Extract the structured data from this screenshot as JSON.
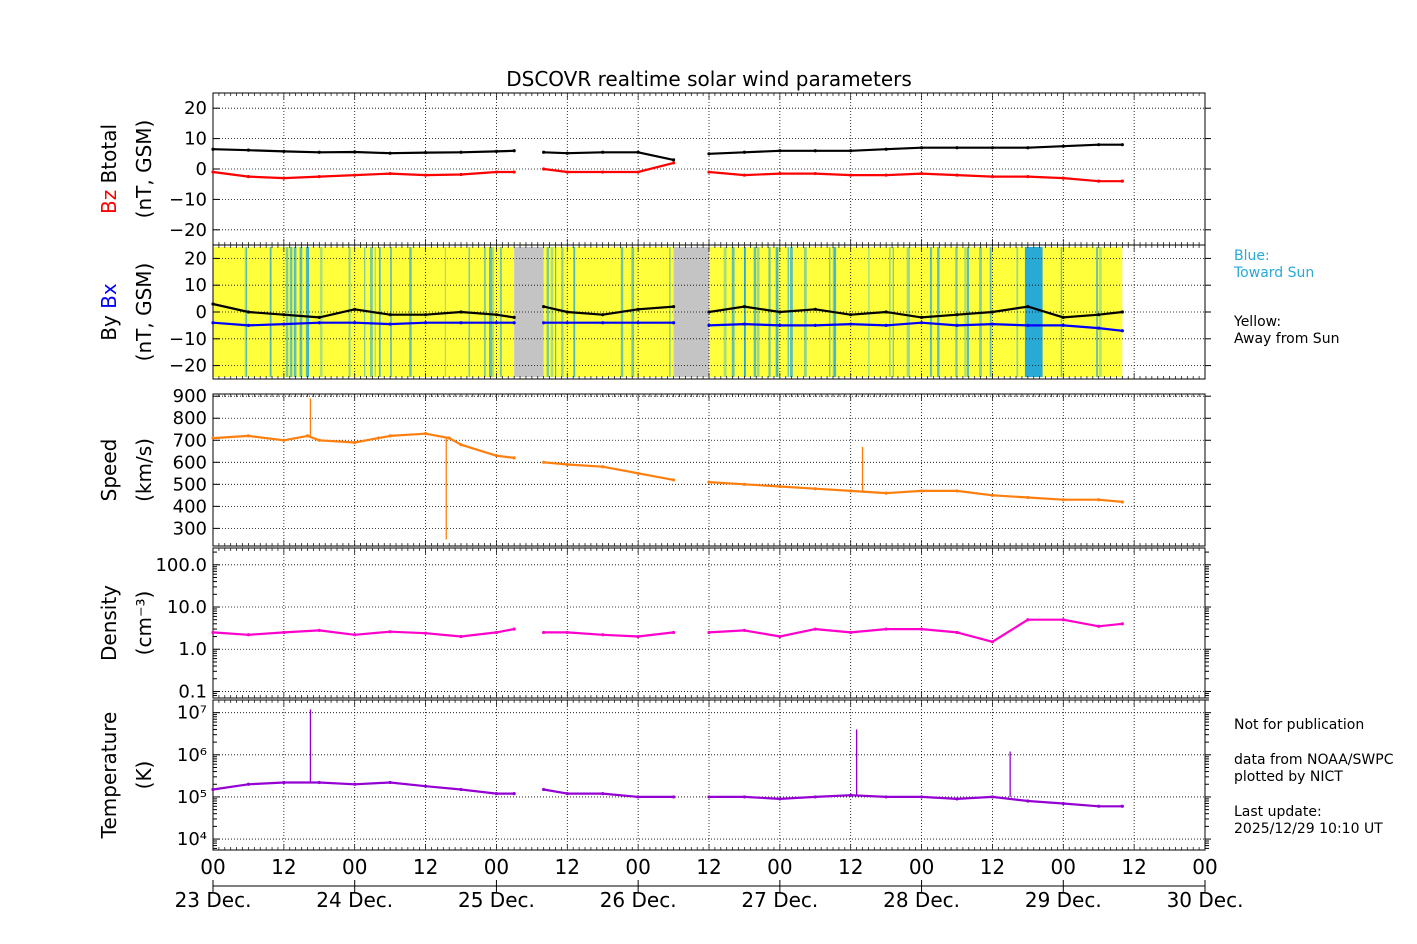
{
  "title": "DSCOVR realtime solar wind parameters",
  "colors": {
    "btotal": "#000000",
    "bz": "#ff0000",
    "by": "#000000",
    "bx": "#0000ff",
    "speed": "#ff7f0e",
    "density": "#ff00cc",
    "temperature": "#9400d3",
    "toward": "#29a9d6",
    "away": "#ffff3c",
    "gap": "#c4c4c4"
  },
  "legend_notes": {
    "blue_label": "Blue:",
    "blue_text": "Toward Sun",
    "yellow_label": "Yellow:",
    "yellow_text": "Away from Sun"
  },
  "footer_notes": {
    "not_for_pub": "Not for publication",
    "source": "data from NOAA/SWPC",
    "plotted": "plotted by NICT",
    "last_update_label": "Last update:",
    "last_update": "2025/12/29 10:10 UT"
  },
  "chart_data": [
    {
      "type": "line",
      "name": "magnetic-field-total",
      "ylabel_lines": [
        [
          "Bz",
          "Btotal"
        ],
        [
          "(nT, GSM)"
        ]
      ],
      "ylim": [
        -25,
        25
      ],
      "yticks": [
        -20,
        -10,
        0,
        10,
        20
      ],
      "ytick_labels": [
        "−20",
        "−10",
        "0",
        "10",
        "20"
      ],
      "series": [
        {
          "name": "Btotal",
          "color_key": "btotal",
          "points": [
            [
              0,
              6.5
            ],
            [
              6,
              6.2
            ],
            [
              12,
              5.8
            ],
            [
              18,
              5.5
            ],
            [
              24,
              5.6
            ],
            [
              30,
              5.2
            ],
            [
              36,
              5.4
            ],
            [
              42,
              5.5
            ],
            [
              48,
              5.8
            ],
            [
              51,
              6
            ],
            [
              56,
              5.5
            ],
            [
              60,
              5.2
            ],
            [
              66,
              5.5
            ],
            [
              72,
              5.5
            ],
            [
              78,
              3
            ],
            [
              84,
              5
            ],
            [
              90,
              5.5
            ],
            [
              96,
              6
            ],
            [
              102,
              6
            ],
            [
              108,
              6
            ],
            [
              114,
              6.5
            ],
            [
              120,
              7
            ],
            [
              126,
              7
            ],
            [
              132,
              7
            ],
            [
              138,
              7
            ],
            [
              144,
              7.5
            ],
            [
              150,
              8
            ],
            [
              154,
              8
            ]
          ]
        },
        {
          "name": "Bz",
          "color_key": "bz",
          "points": [
            [
              0,
              -1
            ],
            [
              6,
              -2.5
            ],
            [
              12,
              -3
            ],
            [
              18,
              -2.5
            ],
            [
              24,
              -2
            ],
            [
              30,
              -1.5
            ],
            [
              36,
              -2
            ],
            [
              42,
              -1.8
            ],
            [
              48,
              -1
            ],
            [
              51,
              -1
            ],
            [
              56,
              0
            ],
            [
              60,
              -1
            ],
            [
              66,
              -1
            ],
            [
              72,
              -1
            ],
            [
              78,
              2
            ],
            [
              84,
              -1
            ],
            [
              90,
              -2
            ],
            [
              96,
              -1.5
            ],
            [
              102,
              -1.5
            ],
            [
              108,
              -2
            ],
            [
              114,
              -2
            ],
            [
              120,
              -1.5
            ],
            [
              126,
              -2
            ],
            [
              132,
              -2.5
            ],
            [
              138,
              -2.5
            ],
            [
              144,
              -3
            ],
            [
              150,
              -4
            ],
            [
              154,
              -4
            ]
          ]
        }
      ]
    },
    {
      "type": "line",
      "name": "magnetic-field-components",
      "ylabel_lines": [
        [
          "By",
          "Bx"
        ],
        [
          "(nT, GSM)"
        ]
      ],
      "ylim": [
        -25,
        25
      ],
      "yticks": [
        -20,
        -10,
        0,
        10,
        20
      ],
      "ytick_labels": [
        "−20",
        "−10",
        "0",
        "10",
        "20"
      ],
      "sector_shading": {
        "away_ranges": [
          [
            0,
            51
          ],
          [
            56,
            78
          ],
          [
            84,
            154
          ]
        ],
        "gap_ranges": [
          [
            51,
            56
          ],
          [
            78,
            84
          ]
        ],
        "toward_ranges": [
          [
            137.5,
            140.5
          ]
        ]
      },
      "series": [
        {
          "name": "By",
          "color_key": "by",
          "points": [
            [
              0,
              3
            ],
            [
              6,
              0
            ],
            [
              12,
              -1
            ],
            [
              18,
              -2
            ],
            [
              24,
              1
            ],
            [
              30,
              -1
            ],
            [
              36,
              -1
            ],
            [
              42,
              0
            ],
            [
              48,
              -1
            ],
            [
              51,
              -2
            ],
            [
              56,
              2
            ],
            [
              60,
              0
            ],
            [
              66,
              -1
            ],
            [
              72,
              1
            ],
            [
              78,
              2
            ],
            [
              84,
              0
            ],
            [
              90,
              2
            ],
            [
              96,
              0
            ],
            [
              102,
              1
            ],
            [
              108,
              -1
            ],
            [
              114,
              0
            ],
            [
              120,
              -2
            ],
            [
              126,
              -1
            ],
            [
              132,
              0
            ],
            [
              138,
              2
            ],
            [
              144,
              -2
            ],
            [
              150,
              -1
            ],
            [
              154,
              0
            ]
          ]
        },
        {
          "name": "Bx",
          "color_key": "bx",
          "points": [
            [
              0,
              -4
            ],
            [
              6,
              -5
            ],
            [
              12,
              -4.5
            ],
            [
              18,
              -4
            ],
            [
              24,
              -4
            ],
            [
              30,
              -4.5
            ],
            [
              36,
              -4
            ],
            [
              42,
              -4
            ],
            [
              48,
              -4
            ],
            [
              51,
              -4
            ],
            [
              56,
              -4
            ],
            [
              60,
              -4
            ],
            [
              66,
              -4
            ],
            [
              72,
              -4
            ],
            [
              78,
              -4
            ],
            [
              84,
              -5
            ],
            [
              90,
              -4.5
            ],
            [
              96,
              -5
            ],
            [
              102,
              -5
            ],
            [
              108,
              -4.5
            ],
            [
              114,
              -5
            ],
            [
              120,
              -4
            ],
            [
              126,
              -5
            ],
            [
              132,
              -4.5
            ],
            [
              138,
              -5
            ],
            [
              144,
              -5
            ],
            [
              150,
              -6
            ],
            [
              154,
              -7
            ]
          ]
        }
      ]
    },
    {
      "type": "line",
      "name": "solar-wind-speed",
      "ylabel_lines": [
        [
          "Speed"
        ],
        [
          "(km/s)"
        ]
      ],
      "ylim": [
        220,
        910
      ],
      "yticks": [
        300,
        400,
        500,
        600,
        700,
        800,
        900
      ],
      "ytick_labels": [
        "300",
        "400",
        "500",
        "600",
        "700",
        "800",
        "900"
      ],
      "series": [
        {
          "name": "Speed",
          "color_key": "speed",
          "points": [
            [
              0,
              710
            ],
            [
              6,
              720
            ],
            [
              12,
              700
            ],
            [
              16,
              720
            ],
            [
              18,
              700
            ],
            [
              24,
              690
            ],
            [
              28,
              710
            ],
            [
              30,
              720
            ],
            [
              36,
              730
            ],
            [
              40,
              710
            ],
            [
              42,
              680
            ],
            [
              48,
              630
            ],
            [
              51,
              620
            ],
            [
              56,
              600
            ],
            [
              60,
              590
            ],
            [
              66,
              580
            ],
            [
              72,
              550
            ],
            [
              78,
              520
            ],
            [
              84,
              510
            ],
            [
              90,
              500
            ],
            [
              96,
              490
            ],
            [
              102,
              480
            ],
            [
              108,
              470
            ],
            [
              114,
              460
            ],
            [
              120,
              470
            ],
            [
              126,
              470
            ],
            [
              132,
              450
            ],
            [
              138,
              440
            ],
            [
              144,
              430
            ],
            [
              150,
              430
            ],
            [
              154,
              420
            ]
          ]
        }
      ],
      "annotations": [
        {
          "x": 16.5,
          "y": 890
        },
        {
          "x": 39.5,
          "y": 250
        },
        {
          "x": 110,
          "y": 670
        }
      ]
    },
    {
      "type": "line",
      "name": "proton-density",
      "ylabel_lines": [
        [
          "Density"
        ],
        [
          "(cm⁻³)"
        ]
      ],
      "yscale": "log",
      "ylim": [
        0.07,
        250
      ],
      "yticks": [
        0.1,
        1.0,
        10.0,
        100.0
      ],
      "ytick_labels": [
        "0.1",
        "1.0",
        "10.0",
        "100.0"
      ],
      "series": [
        {
          "name": "Density",
          "color_key": "density",
          "points": [
            [
              0,
              2.5
            ],
            [
              6,
              2.2
            ],
            [
              12,
              2.5
            ],
            [
              18,
              2.8
            ],
            [
              24,
              2.2
            ],
            [
              30,
              2.6
            ],
            [
              36,
              2.4
            ],
            [
              42,
              2
            ],
            [
              48,
              2.5
            ],
            [
              51,
              3
            ],
            [
              56,
              2.5
            ],
            [
              60,
              2.5
            ],
            [
              66,
              2.2
            ],
            [
              72,
              2
            ],
            [
              78,
              2.5
            ],
            [
              84,
              2.5
            ],
            [
              90,
              2.8
            ],
            [
              96,
              2
            ],
            [
              102,
              3
            ],
            [
              108,
              2.5
            ],
            [
              114,
              3
            ],
            [
              120,
              3
            ],
            [
              126,
              2.5
            ],
            [
              132,
              1.5
            ],
            [
              138,
              5
            ],
            [
              144,
              5
            ],
            [
              150,
              3.5
            ],
            [
              154,
              4
            ]
          ]
        }
      ]
    },
    {
      "type": "line",
      "name": "proton-temperature",
      "ylabel_lines": [
        [
          "Temperature"
        ],
        [
          "(K)"
        ]
      ],
      "yscale": "log",
      "ylim": [
        5500,
        20000000
      ],
      "yticks": [
        10000,
        100000,
        1000000,
        10000000
      ],
      "ytick_labels": [
        "10⁴",
        "10⁵",
        "10⁶",
        "10⁷"
      ],
      "series": [
        {
          "name": "Temperature",
          "color_key": "temperature",
          "points": [
            [
              0,
              150000
            ],
            [
              6,
              200000
            ],
            [
              12,
              220000
            ],
            [
              18,
              220000
            ],
            [
              24,
              200000
            ],
            [
              30,
              220000
            ],
            [
              36,
              180000
            ],
            [
              42,
              150000
            ],
            [
              48,
              120000
            ],
            [
              51,
              120000
            ],
            [
              56,
              150000
            ],
            [
              60,
              120000
            ],
            [
              66,
              120000
            ],
            [
              72,
              100000
            ],
            [
              78,
              100000
            ],
            [
              84,
              100000
            ],
            [
              90,
              100000
            ],
            [
              96,
              90000
            ],
            [
              102,
              100000
            ],
            [
              108,
              110000
            ],
            [
              114,
              100000
            ],
            [
              120,
              100000
            ],
            [
              126,
              90000
            ],
            [
              132,
              100000
            ],
            [
              138,
              80000
            ],
            [
              144,
              70000
            ],
            [
              150,
              60000
            ],
            [
              154,
              60000
            ]
          ]
        }
      ],
      "annotations": [
        {
          "x": 16.5,
          "y": 12000000
        },
        {
          "x": 109,
          "y": 4000000
        },
        {
          "x": 135,
          "y": 1200000
        }
      ]
    }
  ],
  "x_axis": {
    "range_hours": [
      0,
      168
    ],
    "hour_ticks": [
      0,
      12,
      24,
      36,
      48,
      60,
      72,
      84,
      96,
      108,
      120,
      132,
      144,
      156,
      168
    ],
    "hour_labels": [
      "00",
      "12",
      "00",
      "12",
      "00",
      "12",
      "00",
      "12",
      "00",
      "12",
      "00",
      "12",
      "00",
      "12",
      "00"
    ],
    "date_labels": [
      "23 Dec.",
      "24 Dec.",
      "25 Dec.",
      "26 Dec.",
      "27 Dec.",
      "28 Dec.",
      "29 Dec.",
      "30 Dec."
    ]
  }
}
